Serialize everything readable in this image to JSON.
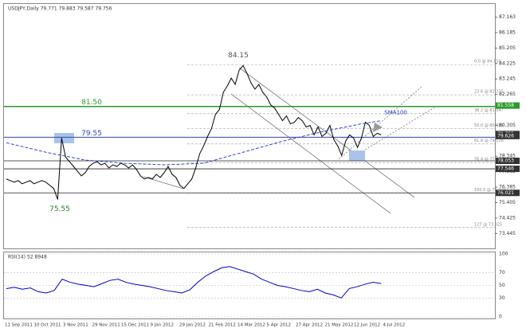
{
  "chart_data": {
    "type": "line",
    "title": "USDJPY,Daily  79.771 79.883 79.587 79.756",
    "x_labels": [
      "11 Sep 2011",
      "10 Oct 2011",
      "3 Nov 2011",
      "29 Nov 2011",
      "15 Dec 2011",
      "9 Jan 2012",
      "29 Jan 2012",
      "21 Feb 2012",
      "14 Mar 2012",
      "5 Apr 2012",
      "27 Apr 2012",
      "21 May 2012",
      "12 Jun 2012",
      "4 Jul 2012"
    ],
    "series": [
      {
        "name": "USDJPY",
        "color": "#000000",
        "values": [
          76.9,
          76.8,
          76.7,
          76.8,
          76.6,
          76.7,
          76.8,
          76.6,
          76.7,
          76.8,
          76.7,
          76.5,
          76.3,
          75.6,
          79.5,
          78.3,
          78.0,
          77.7,
          77.4,
          77.1,
          77.3,
          77.7,
          77.9,
          78.0,
          77.8,
          77.9,
          77.6,
          77.8,
          77.7,
          77.9,
          77.8,
          77.6,
          77.8,
          77.5,
          77.1,
          76.9,
          77.0,
          76.9,
          77.2,
          77.0,
          77.3,
          77.7,
          77.2,
          77.0,
          76.5,
          76.3,
          76.6,
          76.9,
          77.6,
          78.5,
          79.0,
          79.6,
          80.1,
          81.0,
          81.3,
          82.4,
          82.8,
          83.3,
          82.9,
          83.8,
          84.1,
          83.6,
          83.0,
          82.6,
          82.9,
          82.4,
          82.1,
          81.6,
          81.4,
          81.0,
          80.6,
          80.9,
          80.4,
          80.5,
          80.8,
          80.6,
          80.2,
          80.3,
          79.7,
          80.2,
          79.6,
          79.8,
          80.3,
          79.4,
          79.0,
          78.4,
          79.3,
          79.7,
          79.5,
          78.9,
          79.5,
          80.5,
          80.3,
          79.6,
          79.8,
          79.7
        ]
      },
      {
        "name": "SMA100",
        "color": "#2233cc",
        "x": [
          0,
          10,
          20,
          30,
          40,
          50,
          60,
          70,
          80,
          90,
          95
        ],
        "values": [
          79.2,
          78.6,
          78.1,
          77.9,
          77.8,
          77.9,
          78.6,
          79.3,
          79.9,
          80.4,
          80.6
        ]
      }
    ],
    "ylim": [
      72.5,
      88
    ],
    "yticks": [
      87.163,
      86.185,
      85.205,
      84.225,
      83.245,
      82.265,
      80.305,
      78.345,
      77.365,
      76.385,
      75.405,
      74.425,
      73.445
    ],
    "levels": [
      {
        "value": 81.5,
        "label": "81.50",
        "color": "#2a9a2a"
      },
      {
        "value": 79.55,
        "label": "79.55",
        "color": "#3344aa"
      },
      {
        "value": 75.55,
        "label": "75.55",
        "color": "#2a7a2a"
      }
    ],
    "support_lines": [
      78.053,
      77.546,
      76.021
    ],
    "price_tags": [
      {
        "value": 81.558,
        "color": "#2a9a2a"
      },
      {
        "value": 79.755,
        "color": "#333333"
      },
      {
        "value": 79.626,
        "color": "#333333"
      },
      {
        "value": 78.053,
        "color": "#333333"
      },
      {
        "value": 77.546,
        "color": "#333333"
      },
      {
        "value": 76.021,
        "color": "#333333"
      }
    ],
    "fib": [
      {
        "value": 84.154,
        "label": "0.0 @ 84.154"
      },
      {
        "value": 82.235,
        "label": "23.6 @ 82.235"
      },
      {
        "value": 81.047,
        "label": "38.2 @ 81.047"
      },
      {
        "value": 80.088,
        "label": "50.0 @ 80.088"
      },
      {
        "value": 79.128,
        "label": "61.8 @ 79.128"
      },
      {
        "value": 77.941,
        "label": "76.4 @ 77.941"
      },
      {
        "value": 76.021,
        "label": "100.0 @ 76.021"
      },
      {
        "value": 73.825,
        "label": "127 @ 73.825"
      }
    ],
    "peak": {
      "value": 84.15,
      "label": "84.15"
    },
    "rsi": {
      "title": "RSI(14) 52.8948",
      "color": "#0000cc",
      "values": [
        45,
        47,
        44,
        46,
        40,
        38,
        42,
        60,
        55,
        52,
        50,
        48,
        53,
        58,
        60,
        55,
        52,
        50,
        48,
        45,
        42,
        40,
        38,
        43,
        55,
        65,
        72,
        78,
        80,
        76,
        72,
        68,
        60,
        55,
        50,
        48,
        45,
        42,
        40,
        44,
        38,
        35,
        30,
        45,
        48,
        52,
        55,
        53
      ],
      "ylim": [
        0,
        100
      ],
      "yticks": [
        100,
        70,
        50,
        30,
        0
      ]
    }
  }
}
